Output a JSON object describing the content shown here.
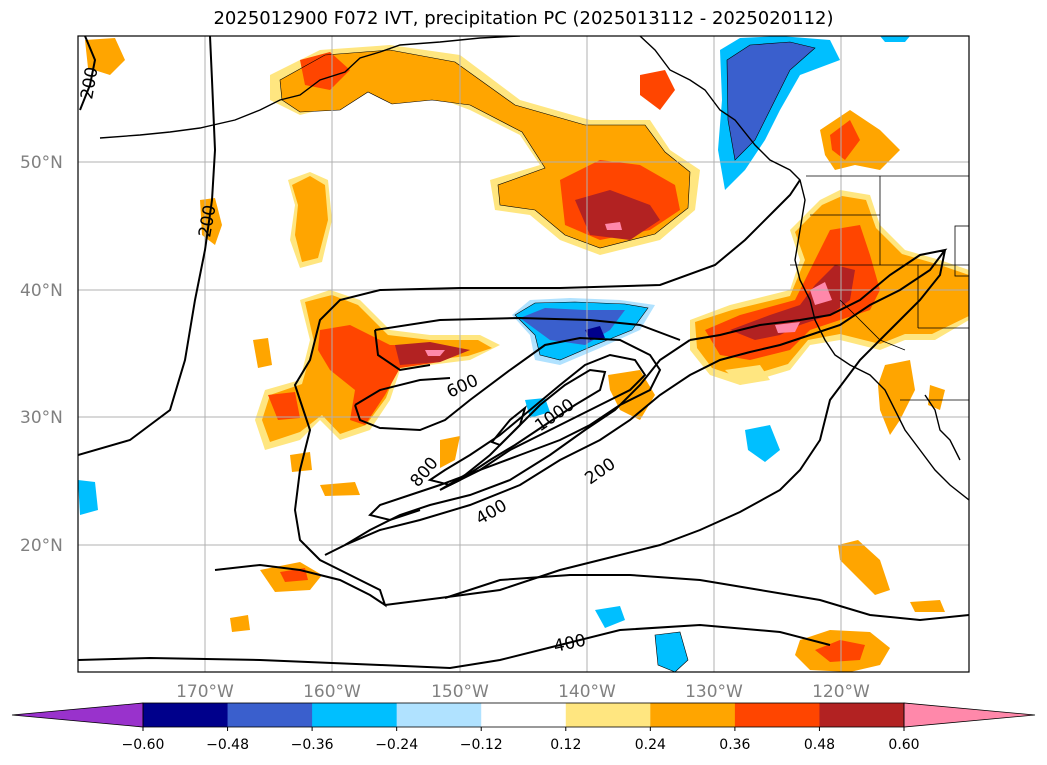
{
  "title": "2025012900 F072 IVT, precipitation PC (2025013112 - 2025020112)",
  "latitude_labels": [
    "50°N",
    "40°N",
    "30°N",
    "20°N"
  ],
  "longitude_labels": [
    "170°W",
    "160°W",
    "150°W",
    "140°W",
    "130°W",
    "120°W"
  ],
  "ivt_contour_labels": [
    "200",
    "200",
    "600",
    "1000",
    "800",
    "400",
    "200",
    "400"
  ],
  "colorbar": {
    "tick_labels": [
      "−0.60",
      "−0.48",
      "−0.36",
      "−0.24",
      "−0.12",
      "0.12",
      "0.24",
      "0.36",
      "0.48",
      "0.60"
    ],
    "colors": [
      "#9932cc",
      "#00008b",
      "#3a5fcd",
      "#00bfff",
      "#b0e2ff",
      "#ffffff",
      "#ffe680",
      "#ffa500",
      "#ff4500",
      "#b22222",
      "#ff88aa"
    ]
  },
  "colors": {
    "land_outline": "#000000",
    "grid": "#b0b0b0",
    "ivt_contour": "#000000"
  }
}
